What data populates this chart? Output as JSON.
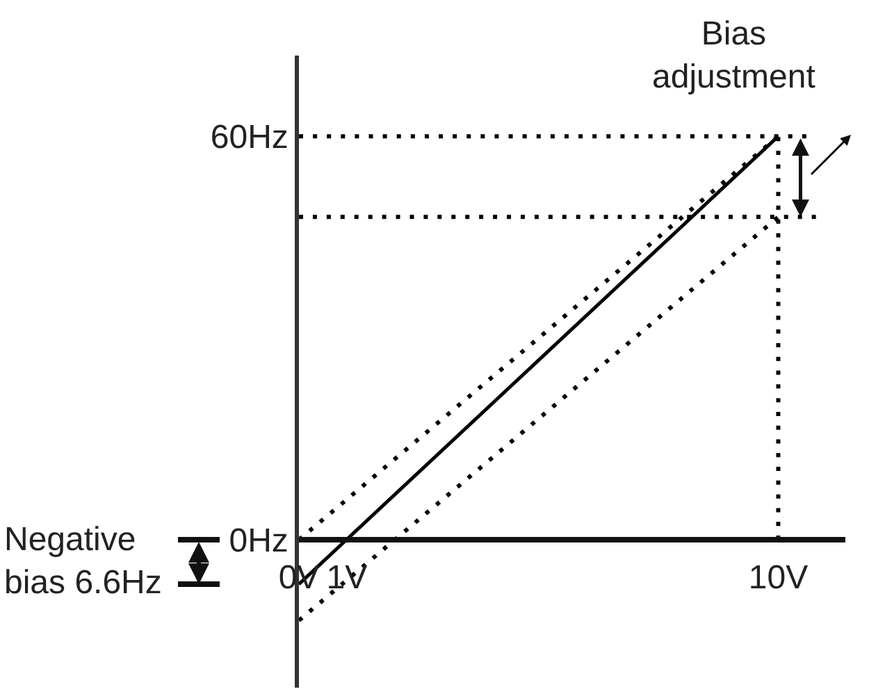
{
  "chart_data": {
    "type": "line",
    "x": [
      0,
      10
    ],
    "series": [
      {
        "color": "#000000",
        "values": [
          -6.6,
          60
        ],
        "line_style": "solid"
      },
      {
        "color": "#000000",
        "values": [
          0,
          60
        ],
        "line_style": "dotted"
      },
      {
        "color": "#000000",
        "values": [
          -12,
          48
        ],
        "line_style": "dotted"
      },
      {
        "color": "#000000",
        "x": [
          0,
          10.6
        ],
        "values": [
          60,
          60
        ],
        "line_style": "dotted"
      },
      {
        "color": "#000000",
        "x": [
          0,
          10.8
        ],
        "values": [
          48,
          48
        ],
        "line_style": "dotted"
      },
      {
        "color": "#000000",
        "x": [
          10,
          10
        ],
        "values": [
          0,
          60
        ],
        "line_style": "dotted"
      }
    ],
    "xlim": [
      0,
      11.4
    ],
    "ylim": [
      -22,
      72
    ],
    "xticks": [
      {
        "value": 0,
        "label": "0V"
      },
      {
        "value": 1,
        "label": "1V"
      },
      {
        "value": 10,
        "label": "10V"
      }
    ],
    "yticks": [
      {
        "value": 0,
        "label": "0Hz"
      },
      {
        "value": 60,
        "label": "60Hz"
      }
    ],
    "annotations": [
      "Bias\nadjustment",
      "Negative\nbias 6.6Hz"
    ]
  }
}
